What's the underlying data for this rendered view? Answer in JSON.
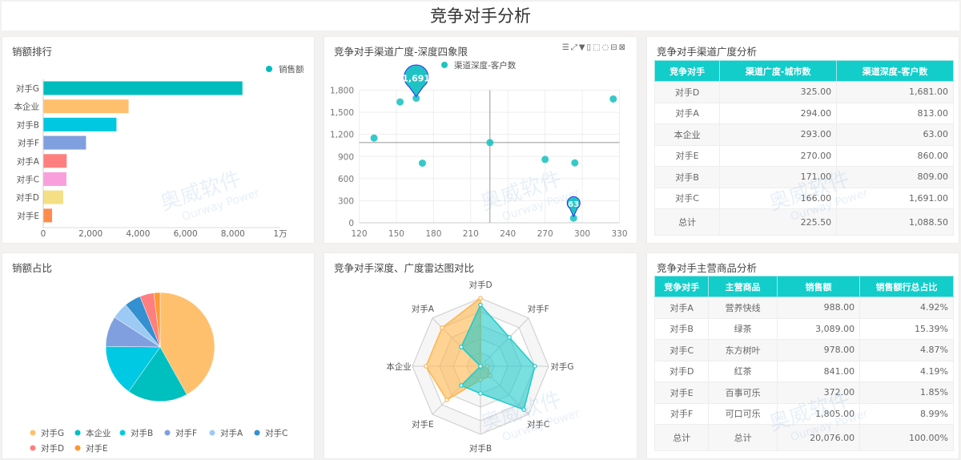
{
  "header": {
    "title": "竞争对手分析"
  },
  "watermark": {
    "cn": "奥威软件",
    "en": "Ourway Power"
  },
  "bar_panel": {
    "title": "销额排行"
  },
  "scatter_panel": {
    "title": "竞争对手渠道广度-深度四象限",
    "toolbar_icons": [
      "list-icon",
      "resize-icon",
      "filter-icon",
      "export-icon",
      "select-rect-icon",
      "lasso-icon",
      "restore-icon",
      "close-icon"
    ]
  },
  "table1": {
    "title": "竞争对手渠道广度分析",
    "headers": [
      "竞争对手",
      "渠道广度-城市数",
      "渠道深度-客户数"
    ],
    "rows": [
      [
        "对手D",
        "325.00",
        "1,681.00"
      ],
      [
        "对手A",
        "294.00",
        "813.00"
      ],
      [
        "本企业",
        "293.00",
        "63.00"
      ],
      [
        "对手E",
        "270.00",
        "860.00"
      ],
      [
        "对手B",
        "171.00",
        "809.00"
      ],
      [
        "对手C",
        "166.00",
        "1,691.00"
      ],
      [
        "总计",
        "225.50",
        "1,088.50"
      ]
    ]
  },
  "pie_panel": {
    "title": "销额占比"
  },
  "radar_panel": {
    "title": "竞争对手深度、广度雷达图对比"
  },
  "table2": {
    "title": "竞争对手主营商品分析",
    "headers": [
      "竞争对手",
      "主营商品",
      "销售额",
      "销售额行总占比"
    ],
    "rows": [
      [
        "对手A",
        "营养快线",
        "988.00",
        "4.92%"
      ],
      [
        "对手B",
        "绿茶",
        "3,089.00",
        "15.39%"
      ],
      [
        "对手C",
        "东方树叶",
        "978.00",
        "4.87%"
      ],
      [
        "对手D",
        "红茶",
        "841.00",
        "4.19%"
      ],
      [
        "对手E",
        "百事可乐",
        "372.00",
        "1.85%"
      ],
      [
        "对手F",
        "可口可乐",
        "1,805.00",
        "8.99%"
      ],
      [
        "总计",
        "总计",
        "20,076.00",
        "100.00%"
      ]
    ]
  },
  "chart_data": [
    {
      "type": "bar",
      "orientation": "horizontal",
      "title": "销额排行",
      "legend": [
        "销售额"
      ],
      "legend_position": "top-right",
      "categories": [
        "对手G",
        "本企业",
        "对手B",
        "对手F",
        "对手A",
        "对手C",
        "对手D",
        "对手E"
      ],
      "values": [
        8403,
        3600,
        3089,
        1805,
        988,
        978,
        841,
        372
      ],
      "colors": [
        "#00bdbd",
        "#ffc06e",
        "#00c8e0",
        "#7f9fdf",
        "#ff7f7f",
        "#f9a0dc",
        "#f5df84",
        "#ff8c4c"
      ],
      "xlim": [
        0,
        10000
      ],
      "xticks": [
        "0",
        "2,000",
        "4,000",
        "6,000",
        "8,000",
        "1万"
      ]
    },
    {
      "type": "scatter",
      "title": "竞争对手渠道广度-深度四象限",
      "legend": [
        "渠道深度-客户数"
      ],
      "legend_position": "top",
      "points": [
        [
          132,
          1150
        ],
        [
          153,
          1640
        ],
        [
          166,
          1691
        ],
        [
          171,
          809
        ],
        [
          225.5,
          1088.5
        ],
        [
          270,
          860
        ],
        [
          294,
          813
        ],
        [
          293,
          63
        ],
        [
          325,
          1681
        ]
      ],
      "xlim": [
        120,
        330
      ],
      "ylim": [
        0,
        1800
      ],
      "xticks": [
        "120",
        "150",
        "180",
        "210",
        "240",
        "270",
        "300",
        "330"
      ],
      "yticks": [
        "0",
        "300",
        "600",
        "900",
        "1,200",
        "1,500",
        "1,800"
      ],
      "reference_lines": {
        "x": 225.5,
        "y": 1088.5
      },
      "markers": [
        {
          "point": [
            166,
            1691
          ],
          "label": "1,691"
        },
        {
          "point": [
            293,
            63
          ],
          "label": "63"
        }
      ],
      "color": "#1fc3c3",
      "grid": true
    },
    {
      "type": "pie",
      "title": "销额占比",
      "legend_position": "bottom",
      "labels": [
        "对手G",
        "本企业",
        "对手B",
        "对手F",
        "对手A",
        "对手C",
        "对手D",
        "对手E"
      ],
      "values": [
        8403,
        3600,
        3089,
        1805,
        988,
        978,
        841,
        372
      ],
      "colors": [
        "#ffc06e",
        "#00bfbf",
        "#00cae3",
        "#7f9fdf",
        "#9ccaf5",
        "#3490d0",
        "#ff7f7f",
        "#ff9933"
      ]
    },
    {
      "type": "radar",
      "title": "竞争对手深度、广度雷达图对比",
      "axes": [
        "对手D",
        "对手F",
        "对手G",
        "对手C",
        "对手B",
        "对手E",
        "本企业",
        "对手A"
      ],
      "series": [
        {
          "values": [
            1.0,
            0,
            0.1,
            0.2,
            0.2,
            0.7,
            0.8,
            0.8
          ],
          "color": "#ffb54d"
        },
        {
          "values": [
            0.9,
            0.6,
            0.8,
            0.9,
            0.4,
            0.4,
            0,
            0.4
          ],
          "color": "#1fc9c9"
        }
      ],
      "max": 1
    }
  ]
}
